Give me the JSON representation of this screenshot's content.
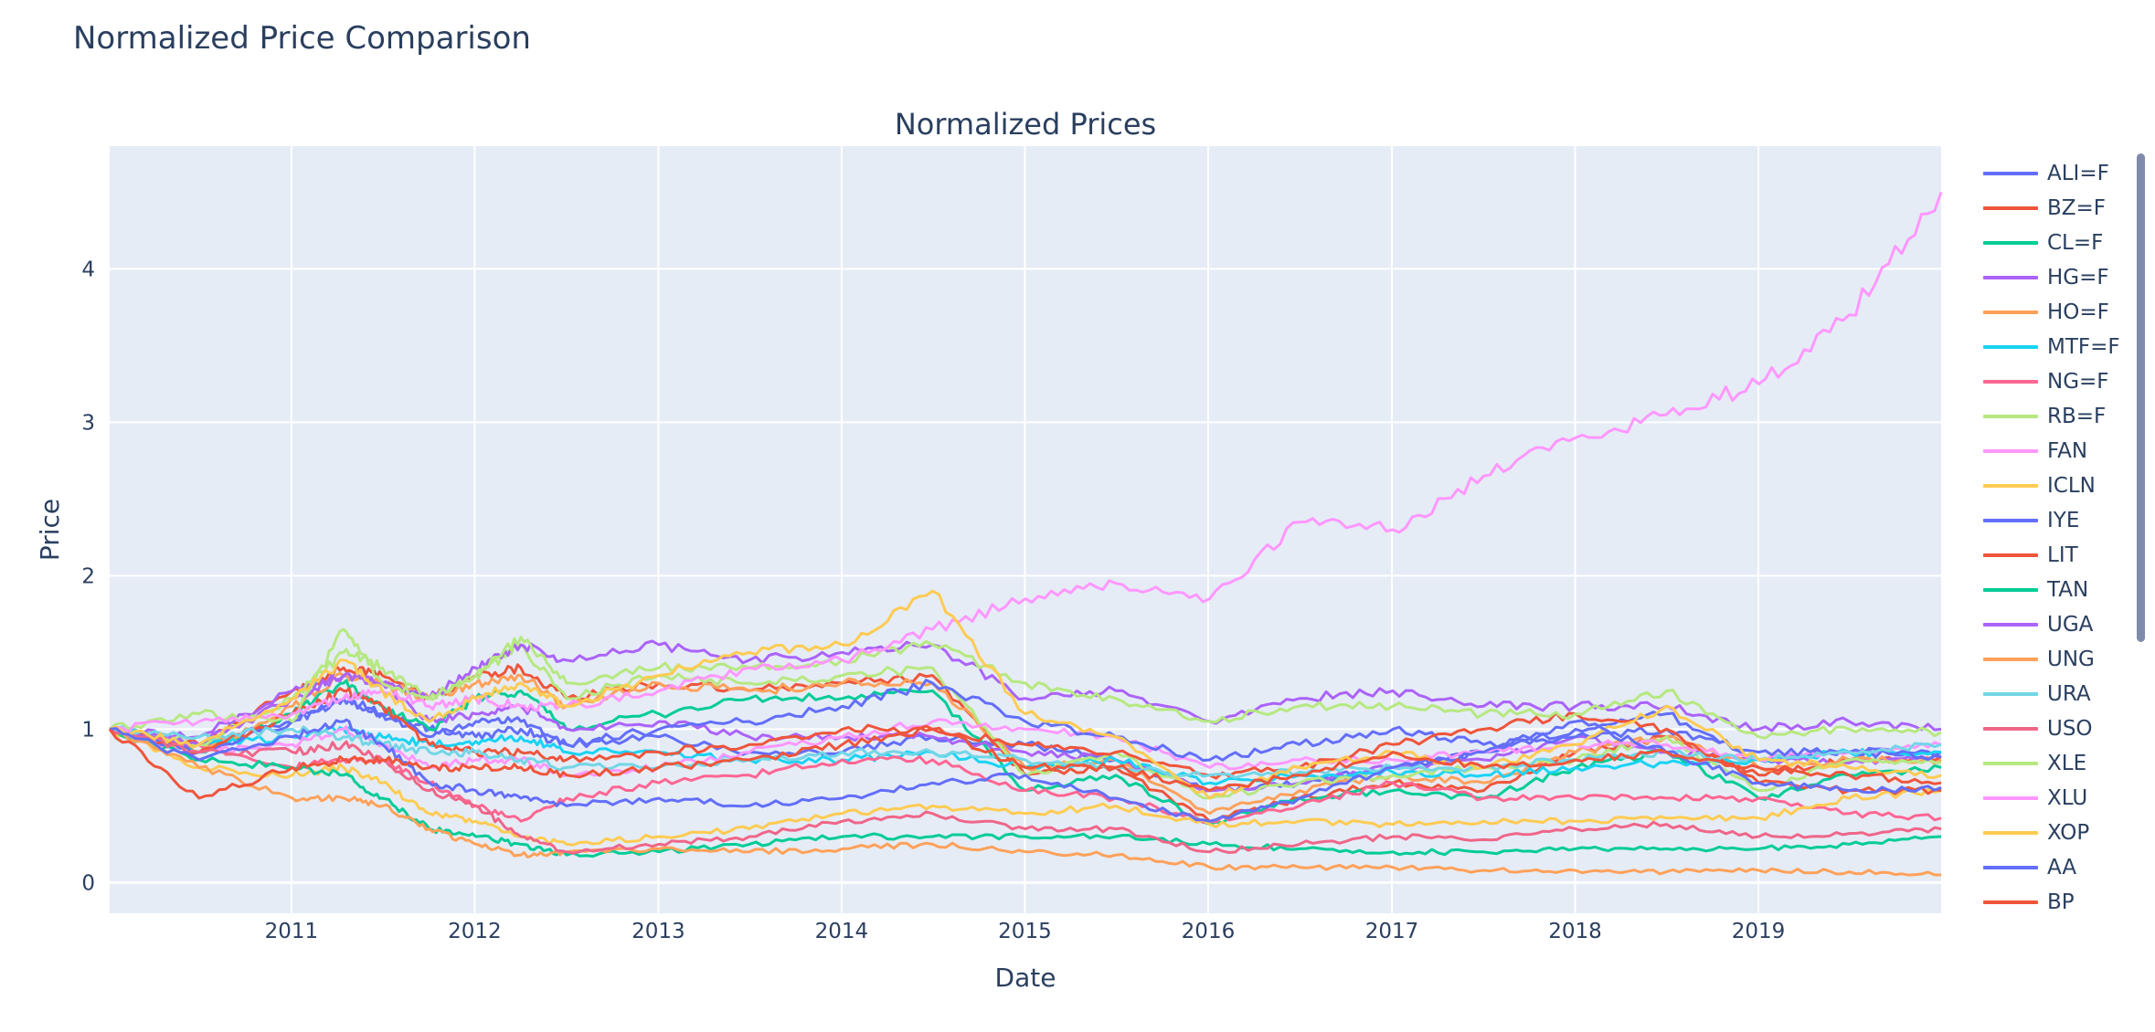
{
  "page": {
    "title": "Normalized Price Comparison"
  },
  "chart_data": {
    "type": "line",
    "title": "Normalized Prices",
    "xlabel": "Date",
    "ylabel": "Price",
    "x_range": [
      "2010-01-04",
      "2019-12-31"
    ],
    "ylim": [
      -0.2,
      4.8
    ],
    "x_ticks": [
      "2011",
      "2012",
      "2013",
      "2014",
      "2015",
      "2016",
      "2017",
      "2018",
      "2019"
    ],
    "y_ticks": [
      0,
      1,
      2,
      3,
      4
    ],
    "grid": true,
    "legend_placement": "right",
    "x": [
      "2010-01-04",
      "2010-07-01",
      "2011-01-03",
      "2011-04-15",
      "2011-07-01",
      "2011-10-03",
      "2012-01-03",
      "2012-04-02",
      "2012-07-02",
      "2013-01-02",
      "2013-07-01",
      "2014-01-02",
      "2014-07-01",
      "2015-01-02",
      "2015-07-01",
      "2016-01-04",
      "2016-07-01",
      "2017-01-03",
      "2017-07-03",
      "2018-01-02",
      "2018-07-02",
      "2019-01-02",
      "2019-07-01",
      "2019-12-31"
    ],
    "series": [
      {
        "name": "ALI=F",
        "color": "#636efa",
        "values": [
          1.0,
          0.9,
          1.05,
          1.2,
          1.1,
          1.0,
          0.95,
          1.0,
          0.9,
          0.95,
          0.85,
          0.85,
          0.95,
          0.9,
          0.8,
          0.6,
          0.65,
          0.75,
          0.85,
          1.0,
          1.1,
          0.8,
          0.85,
          0.85
        ]
      },
      {
        "name": "BZ=F",
        "color": "#ef553b",
        "values": [
          1.0,
          0.9,
          1.25,
          1.4,
          1.35,
          1.2,
          1.35,
          1.4,
          1.2,
          1.3,
          1.25,
          1.3,
          1.35,
          0.7,
          0.75,
          0.4,
          0.55,
          0.65,
          0.6,
          0.85,
          0.95,
          0.7,
          0.8,
          0.82
        ]
      },
      {
        "name": "CL=F",
        "color": "#00cc96",
        "values": [
          1.0,
          0.85,
          1.1,
          1.3,
          1.15,
          1.0,
          1.2,
          1.25,
          1.0,
          1.1,
          1.2,
          1.2,
          1.25,
          0.6,
          0.7,
          0.38,
          0.55,
          0.6,
          0.55,
          0.75,
          0.85,
          0.55,
          0.7,
          0.75
        ]
      },
      {
        "name": "HG=F",
        "color": "#ab63fa",
        "values": [
          1.0,
          0.95,
          1.25,
          1.35,
          1.3,
          1.05,
          1.1,
          1.15,
          1.0,
          1.05,
          0.95,
          0.95,
          0.95,
          0.85,
          0.8,
          0.6,
          0.65,
          0.75,
          0.8,
          0.95,
          0.85,
          0.8,
          0.78,
          0.82
        ]
      },
      {
        "name": "HO=F",
        "color": "#ffa15a",
        "values": [
          1.0,
          0.85,
          1.15,
          1.35,
          1.3,
          1.2,
          1.3,
          1.35,
          1.15,
          1.3,
          1.25,
          1.3,
          1.3,
          0.75,
          0.8,
          0.45,
          0.6,
          0.7,
          0.65,
          0.85,
          0.95,
          0.75,
          0.8,
          0.8
        ]
      },
      {
        "name": "MTF=F",
        "color": "#19d3f3",
        "values": [
          1.0,
          0.9,
          0.95,
          1.0,
          0.95,
          0.9,
          0.92,
          0.95,
          0.85,
          0.85,
          0.8,
          0.8,
          0.85,
          0.75,
          0.8,
          0.65,
          0.7,
          0.72,
          0.7,
          0.75,
          0.78,
          0.8,
          0.85,
          0.85
        ]
      },
      {
        "name": "NG=F",
        "color": "#ff6692",
        "values": [
          1.0,
          0.9,
          0.75,
          0.8,
          0.8,
          0.65,
          0.5,
          0.4,
          0.55,
          0.65,
          0.7,
          0.8,
          0.8,
          0.6,
          0.55,
          0.4,
          0.5,
          0.65,
          0.55,
          0.55,
          0.55,
          0.55,
          0.45,
          0.42
        ]
      },
      {
        "name": "RB=F",
        "color": "#b6e880",
        "values": [
          1.0,
          0.9,
          1.2,
          1.5,
          1.4,
          1.2,
          1.35,
          1.55,
          1.2,
          1.35,
          1.3,
          1.35,
          1.4,
          0.7,
          0.85,
          0.55,
          0.65,
          0.7,
          0.75,
          0.8,
          0.95,
          0.6,
          0.8,
          0.78
        ]
      },
      {
        "name": "FAN",
        "color": "#ff97ff",
        "values": [
          1.0,
          0.85,
          0.9,
          1.0,
          0.9,
          0.75,
          0.8,
          0.8,
          0.7,
          0.75,
          0.85,
          0.95,
          1.05,
          1.0,
          0.95,
          0.75,
          0.8,
          0.8,
          0.85,
          0.9,
          0.9,
          0.8,
          0.85,
          0.9
        ]
      },
      {
        "name": "ICLN",
        "color": "#fecb52",
        "values": [
          1.0,
          0.75,
          0.7,
          0.75,
          0.65,
          0.45,
          0.4,
          0.3,
          0.25,
          0.3,
          0.35,
          0.45,
          0.5,
          0.45,
          0.5,
          0.38,
          0.4,
          0.38,
          0.4,
          0.4,
          0.42,
          0.42,
          0.55,
          0.6
        ]
      },
      {
        "name": "IYE",
        "color": "#636efa",
        "values": [
          1.0,
          0.85,
          1.05,
          1.2,
          1.1,
          0.95,
          1.05,
          1.05,
          0.9,
          1.0,
          1.05,
          1.15,
          1.3,
          1.05,
          0.95,
          0.8,
          0.9,
          1.0,
          0.9,
          0.95,
          1.0,
          0.85,
          0.85,
          0.82
        ]
      },
      {
        "name": "LIT",
        "color": "#ef553b",
        "values": [
          1.0,
          0.85,
          1.1,
          1.25,
          1.15,
          0.9,
          0.85,
          0.85,
          0.8,
          0.85,
          0.9,
          1.0,
          1.0,
          0.9,
          0.85,
          0.7,
          0.75,
          0.9,
          1.0,
          1.1,
          1.0,
          0.65,
          0.6,
          0.6
        ]
      },
      {
        "name": "TAN",
        "color": "#00cc96",
        "values": [
          1.0,
          0.8,
          0.75,
          0.7,
          0.55,
          0.35,
          0.3,
          0.25,
          0.18,
          0.2,
          0.25,
          0.3,
          0.3,
          0.3,
          0.3,
          0.25,
          0.22,
          0.2,
          0.2,
          0.22,
          0.22,
          0.22,
          0.25,
          0.3
        ]
      },
      {
        "name": "UGA",
        "color": "#ab63fa",
        "values": [
          1.0,
          0.9,
          1.2,
          1.35,
          1.3,
          1.2,
          1.4,
          1.55,
          1.45,
          1.55,
          1.45,
          1.5,
          1.55,
          1.2,
          1.25,
          1.05,
          1.2,
          1.25,
          1.15,
          1.15,
          1.15,
          1.0,
          1.05,
          1.0
        ]
      },
      {
        "name": "UNG",
        "color": "#ffa15a",
        "values": [
          1.0,
          0.75,
          0.55,
          0.55,
          0.5,
          0.35,
          0.25,
          0.18,
          0.2,
          0.22,
          0.2,
          0.22,
          0.25,
          0.2,
          0.18,
          0.1,
          0.1,
          0.1,
          0.08,
          0.08,
          0.07,
          0.08,
          0.07,
          0.05
        ]
      },
      {
        "name": "URA",
        "color": "#72d6e6",
        "values": [
          1.0,
          0.95,
          1.0,
          0.95,
          0.9,
          0.85,
          0.85,
          0.8,
          0.75,
          0.75,
          0.8,
          0.85,
          0.85,
          0.8,
          0.75,
          0.7,
          0.72,
          0.75,
          0.75,
          0.8,
          0.85,
          0.8,
          0.85,
          0.9
        ]
      },
      {
        "name": "USO",
        "color": "#ef6689",
        "values": [
          1.0,
          0.85,
          0.85,
          0.9,
          0.8,
          0.6,
          0.5,
          0.3,
          0.2,
          0.25,
          0.3,
          0.4,
          0.45,
          0.35,
          0.35,
          0.2,
          0.25,
          0.3,
          0.28,
          0.35,
          0.38,
          0.3,
          0.32,
          0.35
        ]
      },
      {
        "name": "XLE",
        "color": "#b6e880",
        "values": [
          1.0,
          1.1,
          1.05,
          1.65,
          1.3,
          1.2,
          1.35,
          1.6,
          1.3,
          1.4,
          1.4,
          1.45,
          1.55,
          1.3,
          1.2,
          1.05,
          1.15,
          1.15,
          1.1,
          1.1,
          1.25,
          0.95,
          1.0,
          0.98
        ]
      },
      {
        "name": "XLU",
        "color": "#ff97ff",
        "values": [
          1.0,
          1.05,
          1.1,
          1.2,
          1.25,
          1.15,
          1.2,
          1.15,
          1.15,
          1.25,
          1.4,
          1.45,
          1.65,
          1.85,
          1.95,
          1.85,
          2.35,
          2.3,
          2.65,
          2.9,
          3.05,
          3.25,
          3.7,
          4.5
        ]
      },
      {
        "name": "XOP",
        "color": "#fecb52",
        "values": [
          1.0,
          0.9,
          1.2,
          1.45,
          1.25,
          1.05,
          1.2,
          1.3,
          1.15,
          1.35,
          1.5,
          1.55,
          1.9,
          1.1,
          0.95,
          0.55,
          0.75,
          0.85,
          0.75,
          0.9,
          1.15,
          0.8,
          0.75,
          0.7
        ]
      },
      {
        "name": "AA",
        "color": "#636efa",
        "values": [
          1.0,
          0.8,
          0.95,
          1.05,
          0.9,
          0.65,
          0.6,
          0.55,
          0.5,
          0.55,
          0.5,
          0.55,
          0.65,
          0.7,
          0.55,
          0.4,
          0.55,
          0.75,
          0.85,
          1.05,
          0.85,
          0.65,
          0.6,
          0.62
        ]
      },
      {
        "name": "BP",
        "color": "#ef553b",
        "values": [
          1.0,
          0.55,
          0.75,
          0.8,
          0.8,
          0.75,
          0.75,
          0.75,
          0.7,
          0.75,
          0.8,
          0.9,
          1.0,
          0.75,
          0.75,
          0.6,
          0.7,
          0.85,
          0.75,
          0.8,
          0.85,
          0.75,
          0.7,
          0.65
        ]
      }
    ]
  }
}
